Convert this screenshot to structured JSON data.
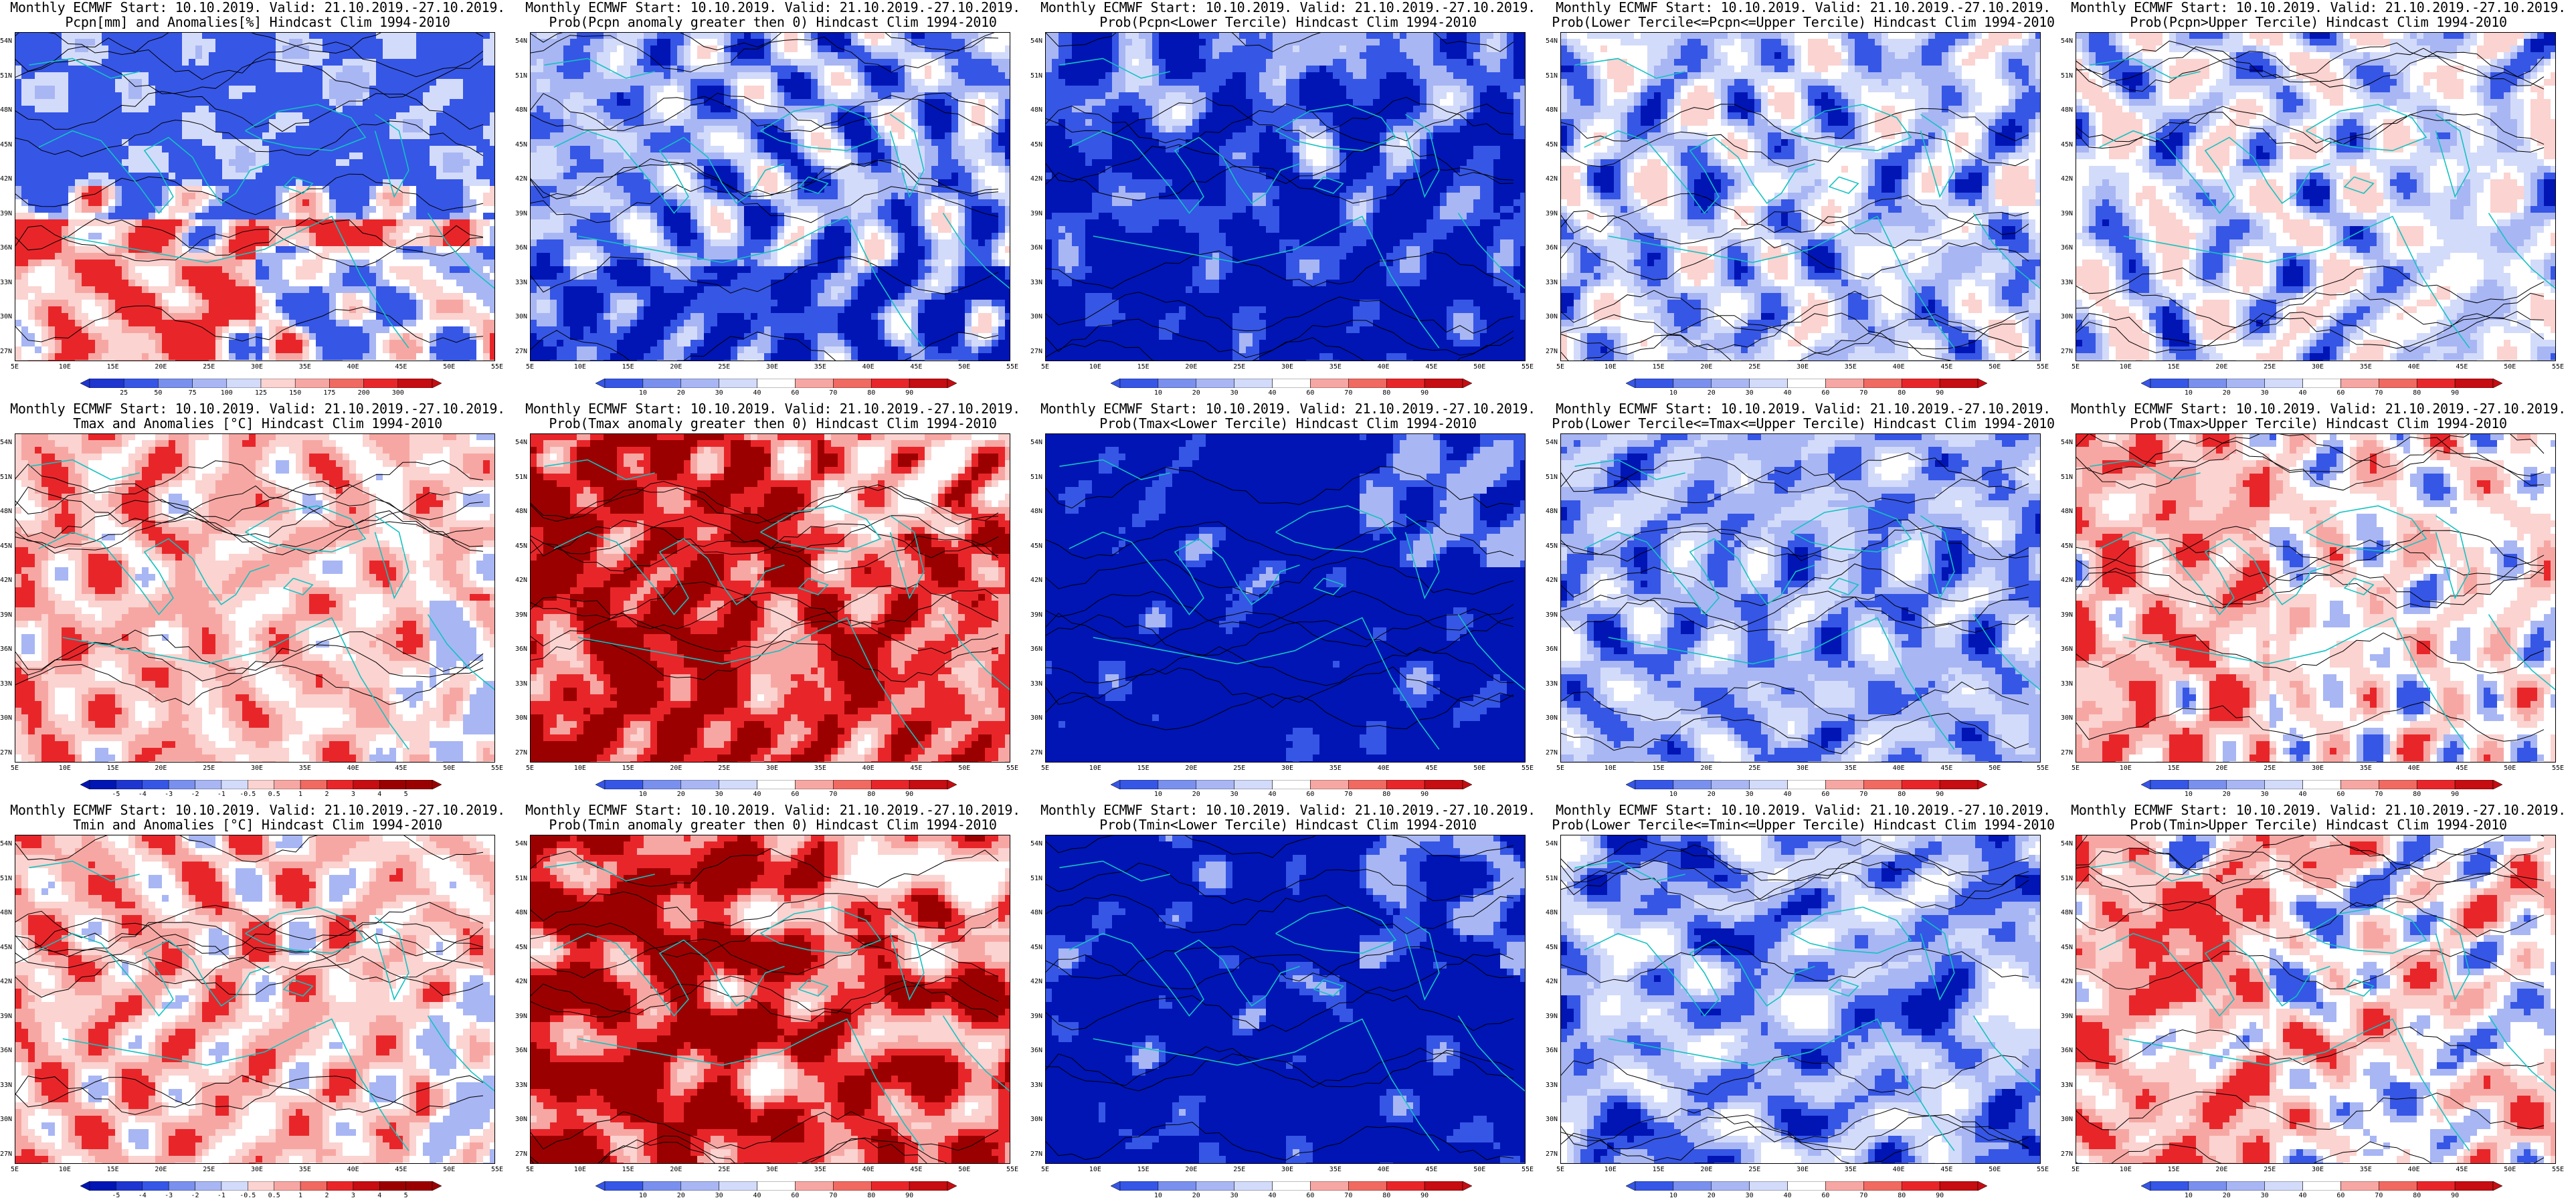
{
  "columns": [
    {
      "kind": "anom"
    },
    {
      "kind": "probpos"
    },
    {
      "kind": "lower"
    },
    {
      "kind": "middle"
    },
    {
      "kind": "upper"
    }
  ],
  "colors": {
    "red_dark": "#9b0000",
    "red_mid": "#e8262a",
    "red_light": "#f7a7a3",
    "pink": "#fbd3d0",
    "blue_dark": "#0015b4",
    "blue_mid": "#3656e6",
    "blue_light": "#a8b6f4",
    "blue_pale": "#d3dbfa",
    "white": "#ffffff",
    "coast": "#13c2c2",
    "contour": "#000000"
  },
  "map": {
    "lat_labels": [
      "54N",
      "51N",
      "48N",
      "45N",
      "42N",
      "39N",
      "36N",
      "33N",
      "30N",
      "27N"
    ],
    "lon_labels": [
      "5E",
      "10E",
      "15E",
      "20E",
      "25E",
      "30E",
      "35E",
      "40E",
      "45E",
      "50E",
      "55E"
    ]
  },
  "panels": [
    {
      "line1": "Monthly ECMWF Start: 10.10.2019. Valid: 21.10.2019.-27.10.2019.",
      "line2": "Pcpn[mm] and Anomalies[%] Hindcast Clim 1994-2010",
      "fill": "pcpn_anom",
      "colorbar": [
        "25",
        "50",
        "75",
        "100",
        "125",
        "150",
        "175",
        "200",
        "300"
      ]
    },
    {
      "line1": "Monthly ECMWF Start: 10.10.2019. Valid: 21.10.2019.-27.10.2019.",
      "line2": "Prob(Pcpn anomaly greater then 0) Hindcast Clim 1994-2010",
      "fill": "pcpn_prob",
      "colorbar": [
        "10",
        "20",
        "30",
        "40",
        "60",
        "70",
        "80",
        "90"
      ]
    },
    {
      "line1": "Monthly ECMWF Start: 10.10.2019. Valid: 21.10.2019.-27.10.2019.",
      "line2": "Prob(Pcpn<Lower Tercile) Hindcast Clim 1994-2010",
      "fill": "pcpn_lower",
      "colorbar": [
        "10",
        "20",
        "30",
        "40",
        "60",
        "70",
        "80",
        "90"
      ]
    },
    {
      "line1": "Monthly ECMWF Start: 10.10.2019. Valid: 21.10.2019.-27.10.2019.",
      "line2": "Prob(Lower Tercile<=Pcpn<=Upper Tercile) Hindcast Clim 1994-2010",
      "fill": "pcpn_mid",
      "colorbar": [
        "10",
        "20",
        "30",
        "40",
        "60",
        "70",
        "80",
        "90"
      ]
    },
    {
      "line1": "Monthly ECMWF Start: 10.10.2019. Valid: 21.10.2019.-27.10.2019.",
      "line2": "Prob(Pcpn>Upper Tercile) Hindcast Clim 1994-2010",
      "fill": "pcpn_upper",
      "colorbar": [
        "10",
        "20",
        "30",
        "40",
        "60",
        "70",
        "80",
        "90"
      ]
    },
    {
      "line1": "Monthly ECMWF Start: 10.10.2019. Valid: 21.10.2019.-27.10.2019.",
      "line2": "Tmax and Anomalies [°C] Hindcast Clim 1994-2010",
      "fill": "t_anom",
      "colorbar": [
        "-5",
        "-4",
        "-3",
        "-2",
        "-1",
        "-0.5",
        "0.5",
        "1",
        "2",
        "3",
        "4",
        "5"
      ]
    },
    {
      "line1": "Monthly ECMWF Start: 10.10.2019. Valid: 21.10.2019.-27.10.2019.",
      "line2": "Prob(Tmax anomaly greater then 0) Hindcast Clim 1994-2010",
      "fill": "t_prob_dark",
      "colorbar": [
        "10",
        "20",
        "30",
        "40",
        "60",
        "70",
        "80",
        "90"
      ]
    },
    {
      "line1": "Monthly ECMWF Start: 10.10.2019. Valid: 21.10.2019.-27.10.2019.",
      "line2": "Prob(Tmax<Lower Tercile) Hindcast Clim 1994-2010",
      "fill": "t_lower",
      "colorbar": [
        "10",
        "20",
        "30",
        "40",
        "60",
        "70",
        "80",
        "90"
      ]
    },
    {
      "line1": "Monthly ECMWF Start: 10.10.2019. Valid: 21.10.2019.-27.10.2019.",
      "line2": "Prob(Lower Tercile<=Tmax<=Upper Tercile) Hindcast Clim 1994-2010",
      "fill": "t_mid",
      "colorbar": [
        "10",
        "20",
        "30",
        "40",
        "60",
        "70",
        "80",
        "90"
      ]
    },
    {
      "line1": "Monthly ECMWF Start: 10.10.2019. Valid: 21.10.2019.-27.10.2019.",
      "line2": "Prob(Tmax>Upper Tercile) Hindcast Clim 1994-2010",
      "fill": "t_upper",
      "colorbar": [
        "10",
        "20",
        "30",
        "40",
        "60",
        "70",
        "80",
        "90"
      ]
    },
    {
      "line1": "Monthly ECMWF Start: 10.10.2019. Valid: 21.10.2019.-27.10.2019.",
      "line2": "Tmin and Anomalies [°C] Hindcast Clim 1994-2010",
      "fill": "t_anom",
      "colorbar": [
        "-5",
        "-4",
        "-3",
        "-2",
        "-1",
        "-0.5",
        "0.5",
        "1",
        "2",
        "3",
        "4",
        "5"
      ]
    },
    {
      "line1": "Monthly ECMWF Start: 10.10.2019. Valid: 21.10.2019.-27.10.2019.",
      "line2": "Prob(Tmin anomaly greater then 0) Hindcast Clim 1994-2010",
      "fill": "t_prob_dark",
      "colorbar": [
        "10",
        "20",
        "30",
        "40",
        "60",
        "70",
        "80",
        "90"
      ]
    },
    {
      "line1": "Monthly ECMWF Start: 10.10.2019. Valid: 21.10.2019.-27.10.2019.",
      "line2": "Prob(Tmin<Lower Tercile) Hindcast Clim 1994-2010",
      "fill": "t_lower",
      "colorbar": [
        "10",
        "20",
        "30",
        "40",
        "60",
        "70",
        "80",
        "90"
      ]
    },
    {
      "line1": "Monthly ECMWF Start: 10.10.2019. Valid: 21.10.2019.-27.10.2019.",
      "line2": "Prob(Lower Tercile<=Tmin<=Upper Tercile) Hindcast Clim 1994-2010",
      "fill": "t_mid",
      "colorbar": [
        "10",
        "20",
        "30",
        "40",
        "60",
        "70",
        "80",
        "90"
      ]
    },
    {
      "line1": "Monthly ECMWF Start: 10.10.2019. Valid: 21.10.2019.-27.10.2019.",
      "line2": "Prob(Tmin>Upper Tercile) Hindcast Clim 1994-2010",
      "fill": "t_upper",
      "colorbar": [
        "10",
        "20",
        "30",
        "40",
        "60",
        "70",
        "80",
        "90"
      ]
    }
  ]
}
